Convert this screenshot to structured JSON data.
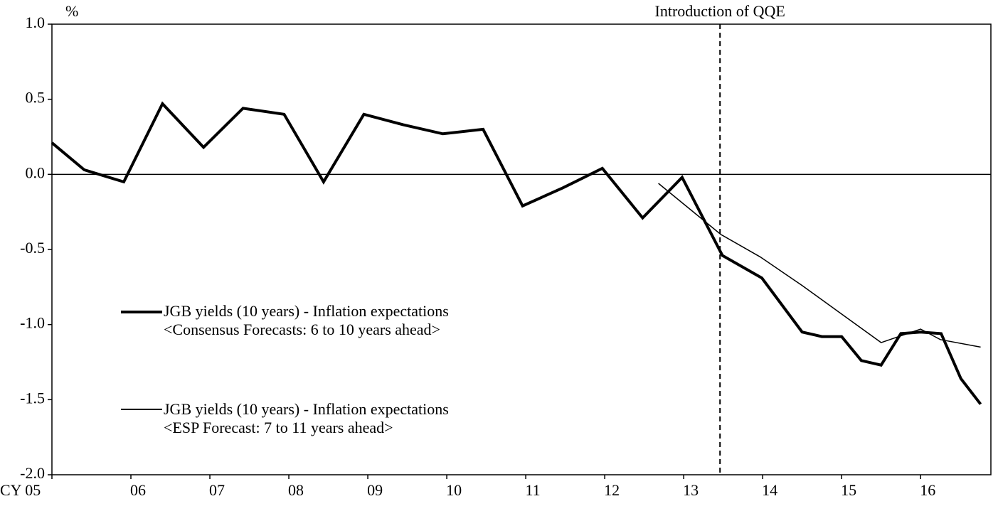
{
  "chart_data": {
    "type": "line",
    "y_unit": "%",
    "annotation": "Introduction of QQE",
    "annotation_x": 2013.46,
    "xlim": [
      2005,
      2016.89
    ],
    "ylim": [
      -2,
      1
    ],
    "yticks": [
      {
        "value": 1,
        "label": "1.0"
      },
      0.5,
      {
        "value": 0,
        "label": "0.0"
      },
      -0.5,
      {
        "value": -1,
        "label": "-1.0"
      },
      -1.5,
      {
        "value": -2,
        "label": "-2.0"
      }
    ],
    "xticks": [
      {
        "value": 2005,
        "label": "CY 05"
      },
      {
        "value": 2006,
        "label": "06"
      },
      {
        "value": 2007,
        "label": "07"
      },
      {
        "value": 2008,
        "label": "08"
      },
      {
        "value": 2009,
        "label": "09"
      },
      {
        "value": 2010,
        "label": "10"
      },
      {
        "value": 2011,
        "label": "11"
      },
      {
        "value": 2012,
        "label": "12"
      },
      {
        "value": 2013,
        "label": "13"
      },
      {
        "value": 2014,
        "label": "14"
      },
      {
        "value": 2015,
        "label": "15"
      },
      {
        "value": 2016,
        "label": "16"
      }
    ],
    "grid": false,
    "legend": "left",
    "series": [
      {
        "name": "JGB yields (10 years) - Inflation expectations\n<Consensus Forecasts: 6 to 10 years ahead>",
        "color": "#000000",
        "width": 4,
        "x": [
          2005.0,
          2005.41,
          2005.91,
          2006.4,
          2006.92,
          2007.42,
          2007.94,
          2008.44,
          2008.95,
          2009.45,
          2009.95,
          2010.46,
          2010.96,
          2011.47,
          2011.97,
          2012.48,
          2012.98,
          2013.49,
          2013.99,
          2014.5,
          2014.75,
          2015.0,
          2015.25,
          2015.5,
          2015.75,
          2016.0,
          2016.26,
          2016.51,
          2016.76
        ],
        "values": [
          0.21,
          0.03,
          -0.05,
          0.47,
          0.18,
          0.44,
          0.4,
          -0.05,
          0.4,
          0.33,
          0.27,
          0.3,
          -0.21,
          -0.09,
          0.04,
          -0.29,
          -0.02,
          -0.54,
          -0.69,
          -1.05,
          -1.08,
          -1.08,
          -1.24,
          -1.27,
          -1.06,
          -1.05,
          -1.06,
          -1.36,
          -1.53
        ]
      },
      {
        "name": "JGB yields (10 years) - Inflation expectations\n<ESP Forecast: 7 to 11 years ahead>",
        "color": "#000000",
        "width": 1.5,
        "x": [
          2012.68,
          2013.47,
          2013.97,
          2014.5,
          2015.0,
          2015.5,
          2016.0,
          2016.25,
          2016.76
        ],
        "values": [
          -0.06,
          -0.4,
          -0.55,
          -0.74,
          -0.93,
          -1.12,
          -1.03,
          -1.1,
          -1.15
        ]
      }
    ]
  }
}
